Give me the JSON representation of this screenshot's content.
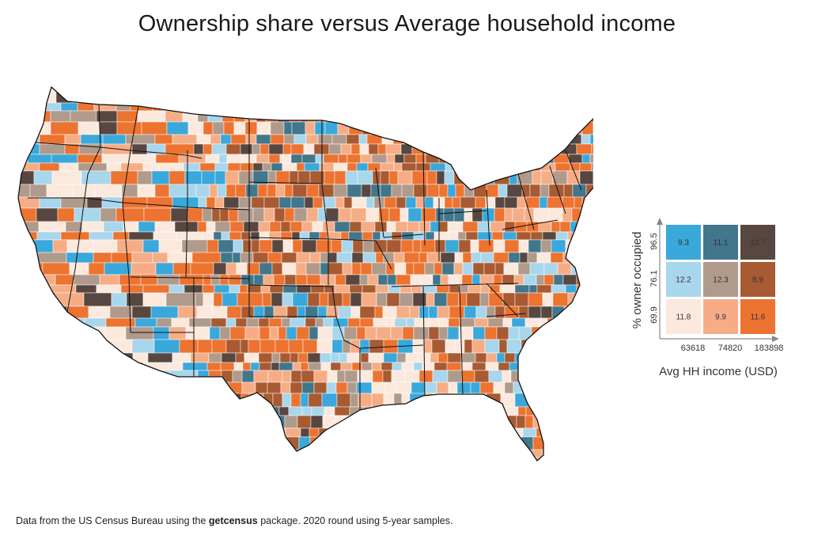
{
  "title": "Ownership share versus Average household income",
  "footer": {
    "prefix": "Data from the US Census Bureau using the ",
    "package": "getcensus",
    "suffix": " package. 2020 round using 5-year samples."
  },
  "colors": {
    "light_blue": "#a8d6ec",
    "mid_blue": "#3aa8db",
    "teal": "#41768b",
    "cream": "#fbe9dd",
    "tan": "#b09a8c",
    "peach": "#f6ad86",
    "orange": "#ed7330",
    "brown": "#a85a32",
    "dark_brown": "#584740",
    "state_border": "#111111",
    "county_border": "#ffffff"
  },
  "legend": {
    "ylabel": "% owner occupied",
    "xlabel": "Avg HH income (USD)",
    "y_ticks": [
      "96.5",
      "76.1",
      "69.9"
    ],
    "x_ticks": [
      "63618",
      "74820",
      "183898"
    ],
    "grid": [
      [
        {
          "value": "9.3",
          "color": "#3aa8db"
        },
        {
          "value": "11.1",
          "color": "#41768b"
        },
        {
          "value": "12.7",
          "color": "#584740"
        }
      ],
      [
        {
          "value": "12.2",
          "color": "#a8d6ec"
        },
        {
          "value": "12.3",
          "color": "#b09a8c"
        },
        {
          "value": "8.9",
          "color": "#a85a32"
        }
      ],
      [
        {
          "value": "11.8",
          "color": "#fbe9dd"
        },
        {
          "value": "9.9",
          "color": "#f6ad86"
        },
        {
          "value": "11.6",
          "color": "#ed7330"
        }
      ]
    ]
  }
}
